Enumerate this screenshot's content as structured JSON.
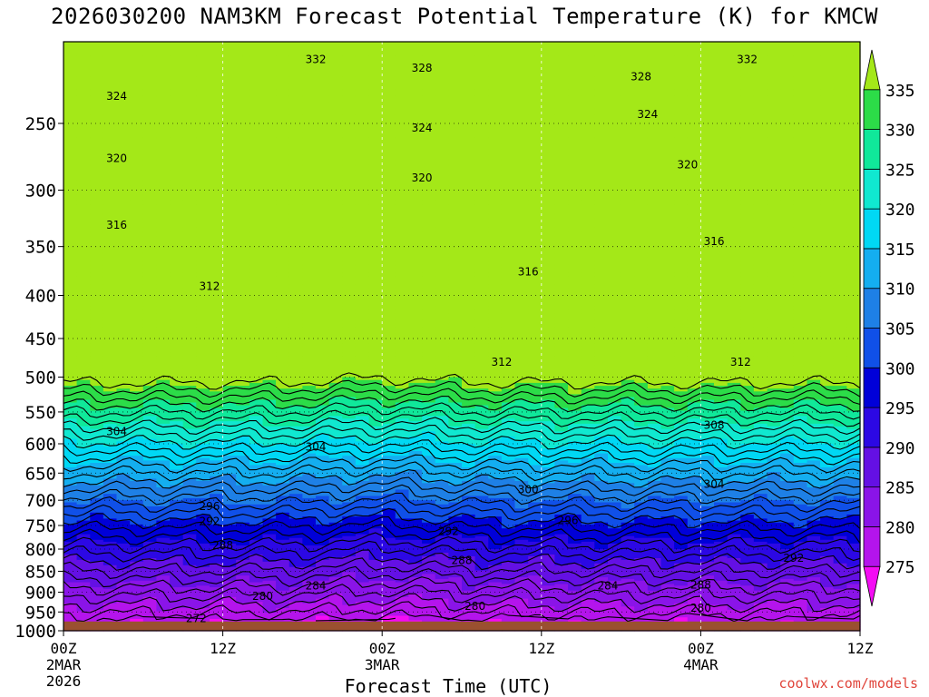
{
  "chart_data": {
    "type": "heatmap",
    "title": "2026030200 NAM3KM Forecast Potential Temperature (K) for KMCW",
    "xlabel": "Forecast Time (UTC)",
    "ylabel": "",
    "credit": "coolwx.com/models",
    "x_ticks": [
      {
        "hour": 0,
        "label": "00Z",
        "sub1": "2MAR",
        "sub2": "2026"
      },
      {
        "hour": 12,
        "label": "12Z",
        "sub1": "",
        "sub2": ""
      },
      {
        "hour": 24,
        "label": "00Z",
        "sub1": "3MAR",
        "sub2": ""
      },
      {
        "hour": 36,
        "label": "12Z",
        "sub1": "",
        "sub2": ""
      },
      {
        "hour": 48,
        "label": "00Z",
        "sub1": "4MAR",
        "sub2": ""
      },
      {
        "hour": 60,
        "label": "12Z",
        "sub1": "",
        "sub2": ""
      }
    ],
    "xlim": [
      0,
      60
    ],
    "y_ticks": [
      250,
      300,
      350,
      400,
      450,
      500,
      550,
      600,
      650,
      700,
      750,
      800,
      850,
      900,
      950,
      1000
    ],
    "ylim": [
      1000,
      200
    ],
    "y_scale": "log-pressure",
    "surface_pressure": 975,
    "colorbar": {
      "levels": [
        275,
        280,
        285,
        290,
        295,
        300,
        305,
        310,
        315,
        320,
        325,
        330,
        335
      ],
      "colors": [
        "#f40cf4",
        "#b414ec",
        "#8a14e8",
        "#6410e4",
        "#2c08e4",
        "#0000d8",
        "#1050e8",
        "#1e80e6",
        "#14aef0",
        "#00d8f4",
        "#10e8d0",
        "#10e89a",
        "#2cdc48",
        "#a4e818"
      ]
    },
    "contour_labels": [
      {
        "value": "332",
        "hour": 19.0,
        "p": 210
      },
      {
        "value": "328",
        "hour": 27.0,
        "p": 215
      },
      {
        "value": "328",
        "hour": 43.5,
        "p": 220
      },
      {
        "value": "332",
        "hour": 51.5,
        "p": 210
      },
      {
        "value": "324",
        "hour": 4.0,
        "p": 232
      },
      {
        "value": "324",
        "hour": 27.0,
        "p": 253
      },
      {
        "value": "324",
        "hour": 44.0,
        "p": 244
      },
      {
        "value": "320",
        "hour": 4.0,
        "p": 275
      },
      {
        "value": "320",
        "hour": 27.0,
        "p": 290
      },
      {
        "value": "320",
        "hour": 47.0,
        "p": 280
      },
      {
        "value": "316",
        "hour": 4.0,
        "p": 330
      },
      {
        "value": "316",
        "hour": 35.0,
        "p": 375
      },
      {
        "value": "316",
        "hour": 49.0,
        "p": 345
      },
      {
        "value": "312",
        "hour": 11.0,
        "p": 390
      },
      {
        "value": "312",
        "hour": 33.0,
        "p": 480
      },
      {
        "value": "312",
        "hour": 51.0,
        "p": 480
      },
      {
        "value": "304",
        "hour": 4.0,
        "p": 580
      },
      {
        "value": "304",
        "hour": 19.0,
        "p": 605
      },
      {
        "value": "308",
        "hour": 49.0,
        "p": 570
      },
      {
        "value": "300",
        "hour": 35.0,
        "p": 680
      },
      {
        "value": "304",
        "hour": 49.0,
        "p": 670
      },
      {
        "value": "296",
        "hour": 11.0,
        "p": 712
      },
      {
        "value": "292",
        "hour": 11.0,
        "p": 742
      },
      {
        "value": "296",
        "hour": 38.0,
        "p": 740
      },
      {
        "value": "292",
        "hour": 29.0,
        "p": 762
      },
      {
        "value": "288",
        "hour": 12.0,
        "p": 792
      },
      {
        "value": "288",
        "hour": 30.0,
        "p": 825
      },
      {
        "value": "292",
        "hour": 55.0,
        "p": 820
      },
      {
        "value": "284",
        "hour": 19.0,
        "p": 885
      },
      {
        "value": "284",
        "hour": 41.0,
        "p": 885
      },
      {
        "value": "288",
        "hour": 48.0,
        "p": 882
      },
      {
        "value": "280",
        "hour": 15.0,
        "p": 910
      },
      {
        "value": "280",
        "hour": 31.0,
        "p": 935
      },
      {
        "value": "280",
        "hour": 48.0,
        "p": 940
      },
      {
        "value": "272",
        "hour": 10.0,
        "p": 967
      }
    ]
  }
}
